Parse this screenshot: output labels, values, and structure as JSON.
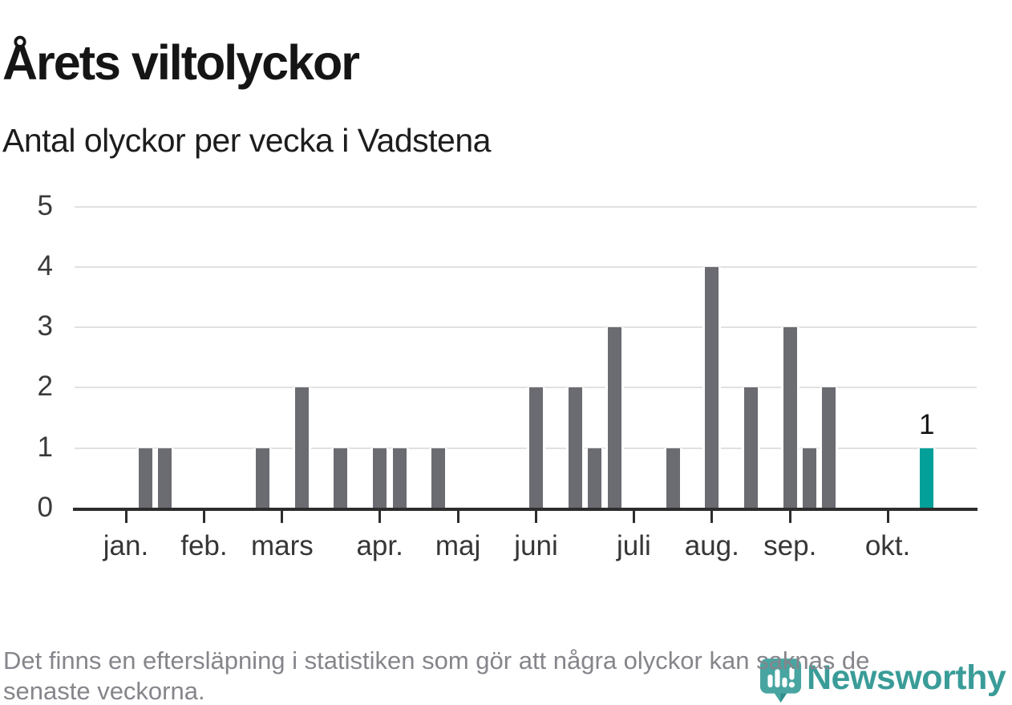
{
  "header": {
    "title": "Årets viltolyckor",
    "subtitle": "Antal olyckor per vecka i Vadstena"
  },
  "chart_data": {
    "type": "bar",
    "title": "Årets viltolyckor",
    "subtitle": "Antal olyckor per vecka i Vadstena",
    "xlabel": "",
    "ylabel": "",
    "ylim": [
      0,
      5
    ],
    "yticks": [
      0,
      1,
      2,
      3,
      4,
      5
    ],
    "grid": "horizontal",
    "legend": null,
    "x_axis_months": [
      {
        "label": "jan.",
        "week_offset": 0
      },
      {
        "label": "feb.",
        "week_offset": 4
      },
      {
        "label": "mars",
        "week_offset": 8
      },
      {
        "label": "apr.",
        "week_offset": 13
      },
      {
        "label": "maj",
        "week_offset": 17
      },
      {
        "label": "juni",
        "week_offset": 21
      },
      {
        "label": "juli",
        "week_offset": 26
      },
      {
        "label": "aug.",
        "week_offset": 30
      },
      {
        "label": "sep.",
        "week_offset": 34
      },
      {
        "label": "okt.",
        "week_offset": 39
      }
    ],
    "bars": [
      {
        "week_index": 1,
        "value": 1,
        "highlight": false
      },
      {
        "week_index": 2,
        "value": 1,
        "highlight": false
      },
      {
        "week_index": 7,
        "value": 1,
        "highlight": false
      },
      {
        "week_index": 9,
        "value": 2,
        "highlight": false
      },
      {
        "week_index": 11,
        "value": 1,
        "highlight": false
      },
      {
        "week_index": 13,
        "value": 1,
        "highlight": false
      },
      {
        "week_index": 14,
        "value": 1,
        "highlight": false
      },
      {
        "week_index": 16,
        "value": 1,
        "highlight": false
      },
      {
        "week_index": 21,
        "value": 2,
        "highlight": false
      },
      {
        "week_index": 23,
        "value": 2,
        "highlight": false
      },
      {
        "week_index": 24,
        "value": 1,
        "highlight": false
      },
      {
        "week_index": 25,
        "value": 3,
        "highlight": false
      },
      {
        "week_index": 28,
        "value": 1,
        "highlight": false
      },
      {
        "week_index": 30,
        "value": 4,
        "highlight": false
      },
      {
        "week_index": 32,
        "value": 2,
        "highlight": false
      },
      {
        "week_index": 34,
        "value": 3,
        "highlight": false
      },
      {
        "week_index": 35,
        "value": 1,
        "highlight": false
      },
      {
        "week_index": 36,
        "value": 2,
        "highlight": false
      },
      {
        "week_index": 41,
        "value": 1,
        "highlight": true,
        "data_label": "1"
      }
    ],
    "colors": {
      "bar_default": "#6b6b72",
      "bar_highlight": "#03a09a",
      "gridline": "#e1e1e1",
      "axis": "#2d2d2d"
    }
  },
  "footer": {
    "lines": [
      "Det finns en eftersläpning i statistiken som gör att några olyckor kan saknas de",
      "senaste veckorna."
    ]
  },
  "logo": {
    "text": "Newsworthy",
    "color": "#3a9c98",
    "icon": "newsworthy-pin-barchart-icon"
  }
}
